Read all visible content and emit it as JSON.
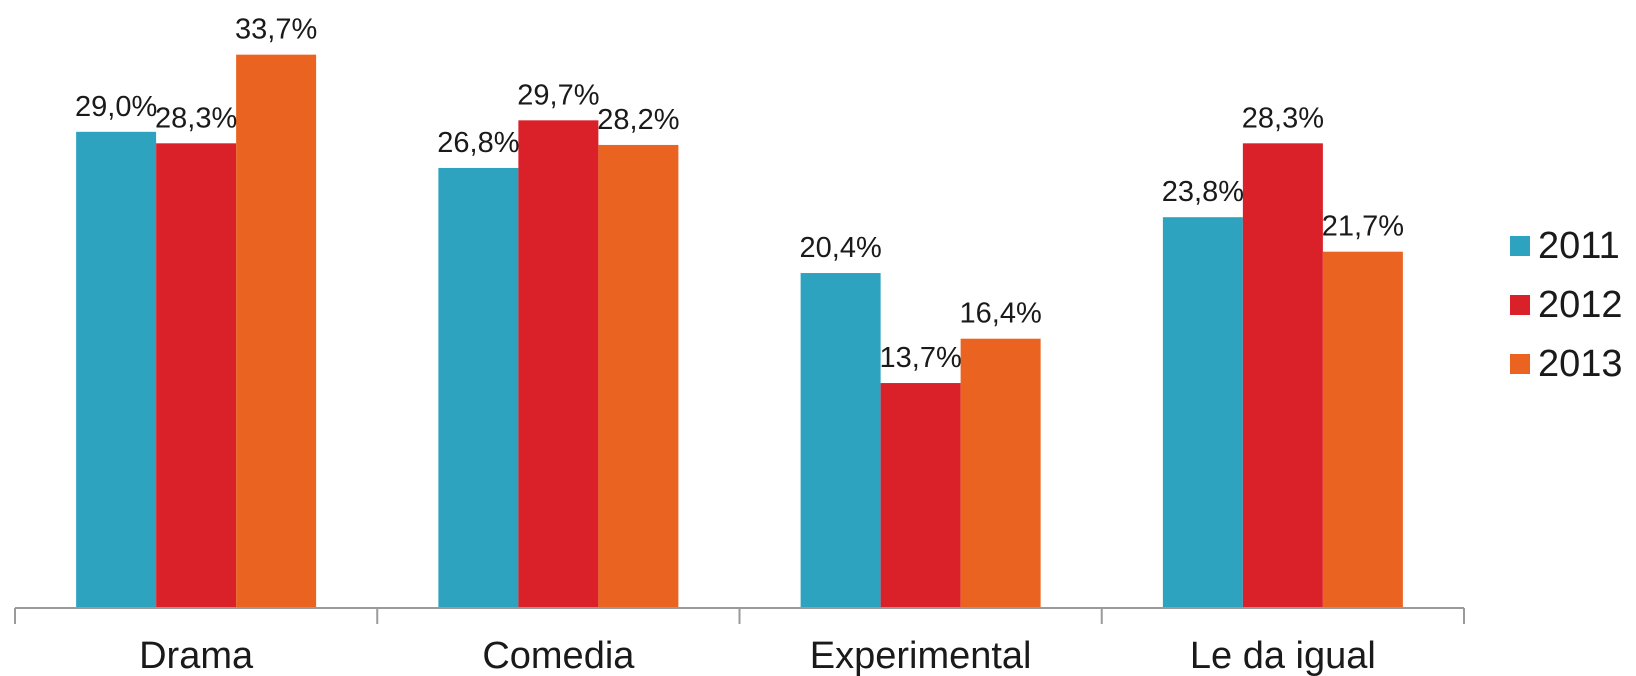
{
  "chart_data": {
    "type": "bar",
    "categories": [
      "Drama",
      "Comedia",
      "Experimental",
      "Le da igual"
    ],
    "series": [
      {
        "name": "2011",
        "color": "#2EA3C0",
        "values": [
          29.0,
          26.8,
          20.4,
          23.8
        ],
        "labels": [
          "29,0%",
          "26,8%",
          "20,4%",
          "23,8%"
        ]
      },
      {
        "name": "2012",
        "color": "#DA2129",
        "values": [
          28.3,
          29.7,
          13.7,
          28.3
        ],
        "labels": [
          "28,3%",
          "29,7%",
          "13,7%",
          "28,3%"
        ]
      },
      {
        "name": "2013",
        "color": "#EA6320",
        "values": [
          33.7,
          28.2,
          16.4,
          21.7
        ],
        "labels": [
          "33,7%",
          "28,2%",
          "16,4%",
          "21,7%"
        ]
      }
    ],
    "title": "",
    "xlabel": "",
    "ylabel": "",
    "ylim": [
      0,
      35
    ],
    "grid": false,
    "legend_position": "right",
    "value_axis_visible": false
  }
}
